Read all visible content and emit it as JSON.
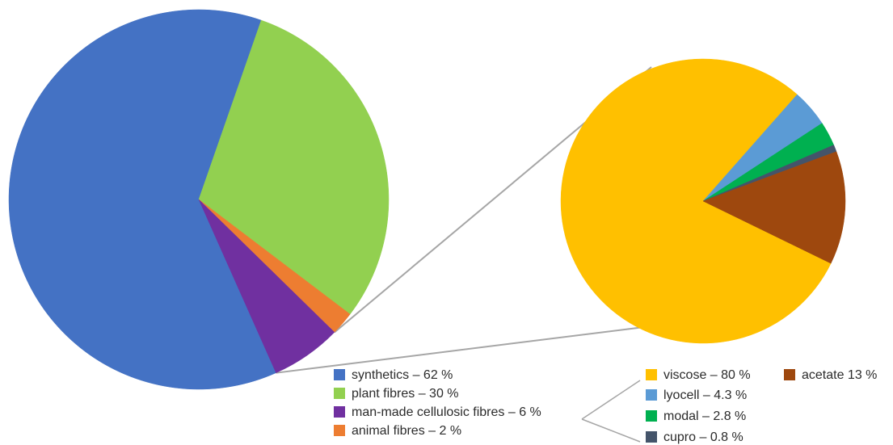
{
  "chart_data": [
    {
      "type": "pie",
      "title": "",
      "slices": [
        {
          "label": "synthetics – 62 %",
          "value": 62,
          "color": "#4472C4"
        },
        {
          "label": "plant fibres – 30 %",
          "value": 30,
          "color": "#92D050"
        },
        {
          "label": "animal fibres – 2 %",
          "value": 2,
          "color": "#ED7D31"
        },
        {
          "label": "man-made cellulosic fibres – 6 %",
          "value": 6,
          "color": "#7030A0"
        }
      ],
      "legend_order": [
        0,
        1,
        3,
        2
      ],
      "legend_placement": "bottom-center"
    },
    {
      "type": "pie",
      "title": "",
      "slices": [
        {
          "label": "viscose – 80 %",
          "value": 80,
          "color": "#FFC000"
        },
        {
          "label": "lyocell – 4.3 %",
          "value": 4.3,
          "color": "#5B9BD5"
        },
        {
          "label": "modal – 2.8 %",
          "value": 2.8,
          "color": "#00B050"
        },
        {
          "label": "cupro – 0.8 %",
          "value": 0.8,
          "color": "#44546A"
        },
        {
          "label": "acetate 13 %",
          "value": 13,
          "color": "#9E480E"
        }
      ],
      "legend_order": [
        0,
        1,
        2,
        3,
        4
      ],
      "legend_placement": "bottom-right"
    }
  ]
}
